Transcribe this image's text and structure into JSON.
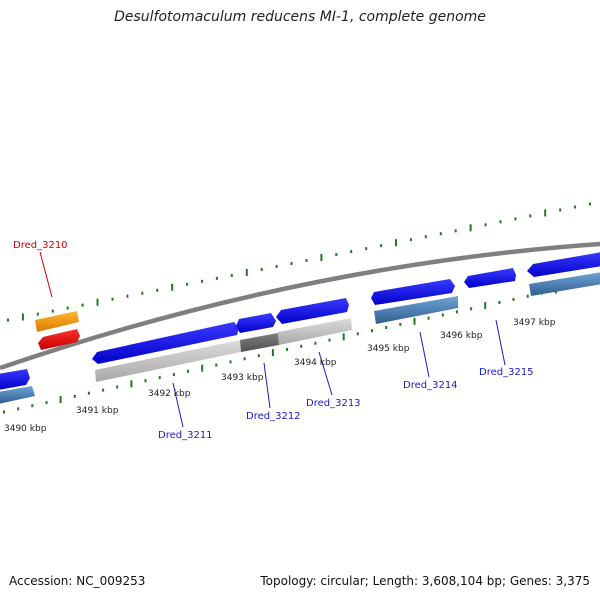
{
  "title": "Desulfotomaculum reducens MI-1, complete genome",
  "footer": {
    "accession": "Accession: NC_009253",
    "stats": "Topology: circular; Length: 3,608,104 bp; Genes: 3,375"
  },
  "colors": {
    "background": "#ffffff",
    "backbone": "#8c8c8c",
    "forward_cds": "#0a0af0",
    "gene_link": "#1a1acc",
    "highlight_gene": "#dd0000",
    "rna_feature": "#f39a12",
    "ticks": "#1f7a1f",
    "reverse_feature_light": "#c0c0c0",
    "reverse_feature_blue": "#4f86bb",
    "reverse_feature_dark": "#6a6a6a"
  },
  "scale": {
    "unit": "kbp",
    "labels": [
      "3490 kbp",
      "3491 kbp",
      "3492 kbp",
      "3493 kbp",
      "3494 kbp",
      "3495 kbp",
      "3496 kbp",
      "3497 kbp"
    ]
  },
  "genes": [
    {
      "name": "Dred_3210",
      "highlight": true
    },
    {
      "name": "Dred_3211",
      "highlight": false
    },
    {
      "name": "Dred_3212",
      "highlight": false
    },
    {
      "name": "Dred_3213",
      "highlight": false
    },
    {
      "name": "Dred_3214",
      "highlight": false
    },
    {
      "name": "Dred_3215",
      "highlight": false
    }
  ]
}
